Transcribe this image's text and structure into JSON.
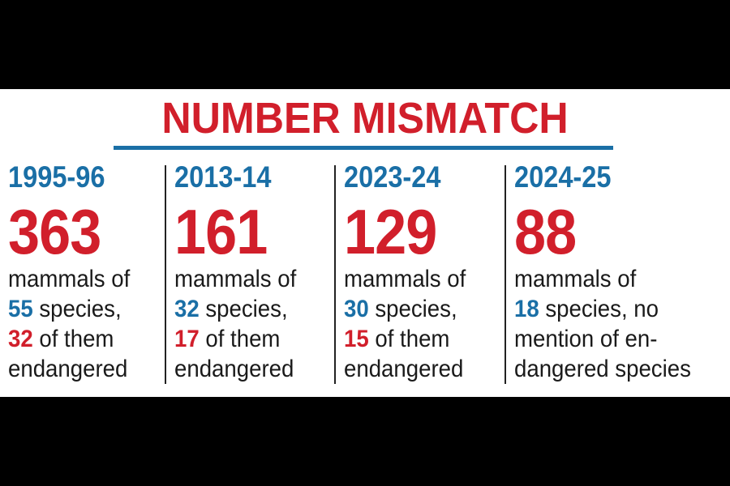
{
  "title": "NUMBER MISMATCH",
  "colors": {
    "red": "#d11f2b",
    "blue": "#1a6fa6",
    "text": "#1a1a1a"
  },
  "columns": [
    {
      "year": "1995-96",
      "count": "363",
      "line1": "mammals of",
      "species_count": "55",
      "species_text": " species,",
      "endangered_count": "32",
      "endangered_text": " of them",
      "line4": "endangered"
    },
    {
      "year": "2013-14",
      "count": "161",
      "line1": "mammals of",
      "species_count": "32",
      "species_text": " species,",
      "endangered_count": "17",
      "endangered_text": " of them",
      "line4": "endangered"
    },
    {
      "year": "2023-24",
      "count": "129",
      "line1": "mammals of",
      "species_count": "30",
      "species_text": " species,",
      "endangered_count": "15",
      "endangered_text": " of them",
      "line4": "endangered"
    },
    {
      "year": "2024-25",
      "count": "88",
      "line1": "mammals of",
      "species_count": "18",
      "species_text": " species, no",
      "line3": "mention of en-",
      "line4": "dangered species"
    }
  ]
}
